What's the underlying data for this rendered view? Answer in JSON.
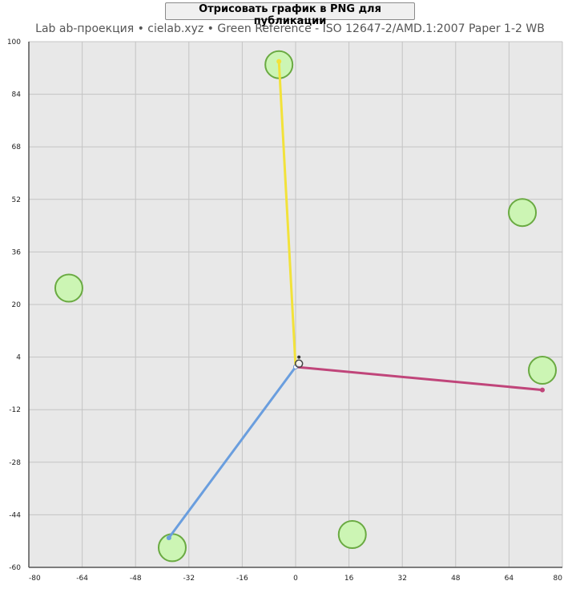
{
  "toolbar": {
    "export_label": "Отрисовать график в PNG для публикации"
  },
  "chart_data": {
    "type": "scatter",
    "title": "Lab ab-проекция  •  cielab.xyz  •  Green Reference - ISO 12647-2/AMD.1:2007 Paper 1-2 WB",
    "xlabel": "",
    "ylabel": "",
    "xlim": [
      -80,
      80
    ],
    "ylim": [
      -60,
      100
    ],
    "xticks": [
      -80,
      -64,
      -48,
      -32,
      -16,
      0,
      16,
      32,
      48,
      64,
      80
    ],
    "yticks": [
      -60,
      -44,
      -28,
      -12,
      4,
      20,
      36,
      52,
      68,
      84,
      100
    ],
    "grid": true,
    "colors": {
      "background": "#e8e8e8",
      "grid": "#c4c4c4",
      "circle_fill": "#ccf5b4",
      "circle_stroke": "#6aaa42",
      "axis": "#555555"
    },
    "reference_circles": [
      {
        "a": -5,
        "b": 93
      },
      {
        "a": 68,
        "b": 48
      },
      {
        "a": -68,
        "b": 25
      },
      {
        "a": 74,
        "b": 0
      },
      {
        "a": -37,
        "b": -54
      },
      {
        "a": 17,
        "b": -50
      }
    ],
    "vectors": [
      {
        "from": [
          0,
          1
        ],
        "to": [
          -5,
          94
        ],
        "color": "#f2e23a"
      },
      {
        "from": [
          0,
          1
        ],
        "to": [
          74,
          -6
        ],
        "color": "#c0457a"
      },
      {
        "from": [
          0,
          1
        ],
        "to": [
          -38,
          -51
        ],
        "color": "#6a9ede"
      }
    ],
    "origin_markers": [
      {
        "a": 1,
        "b": 2,
        "kind": "ring"
      },
      {
        "a": 1,
        "b": 4,
        "kind": "dot"
      }
    ]
  }
}
